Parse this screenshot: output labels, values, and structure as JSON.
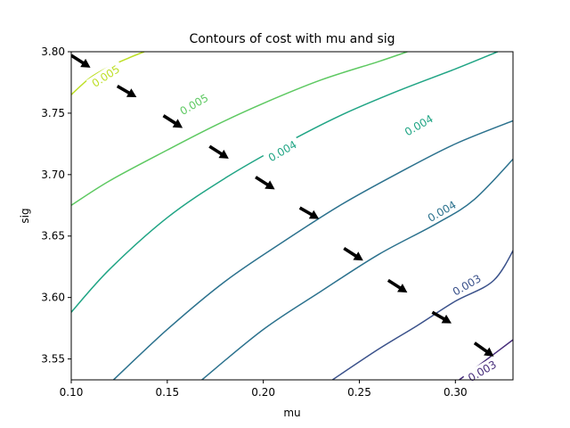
{
  "chart_data": {
    "type": "contour",
    "title": "Contours of cost with mu and sig",
    "xlabel": "mu",
    "ylabel": "sig",
    "xlim": [
      0.1,
      0.33
    ],
    "ylim": [
      3.533,
      3.8
    ],
    "xticks": [
      "0.10",
      "0.15",
      "0.20",
      "0.25",
      "0.30"
    ],
    "xtick_values": [
      0.1,
      0.15,
      0.2,
      0.25,
      0.3
    ],
    "yticks": [
      "3.55",
      "3.60",
      "3.65",
      "3.70",
      "3.75",
      "3.80"
    ],
    "ytick_values": [
      3.55,
      3.6,
      3.65,
      3.7,
      3.75,
      3.8
    ],
    "grid": false,
    "contours": [
      {
        "label": "0.005",
        "color": "#bddf26",
        "points": [
          [
            0.1,
            3.765
          ],
          [
            0.11,
            3.779
          ],
          [
            0.12,
            3.788
          ],
          [
            0.13,
            3.795
          ],
          [
            0.138,
            3.8
          ]
        ],
        "label_at": [
          0.118,
          3.78
        ],
        "label_angle": -33
      },
      {
        "label": "0.005",
        "color": "#5ec962",
        "points": [
          [
            0.1,
            3.675
          ],
          [
            0.12,
            3.695
          ],
          [
            0.15,
            3.72
          ],
          [
            0.175,
            3.74
          ],
          [
            0.2,
            3.758
          ],
          [
            0.23,
            3.777
          ],
          [
            0.26,
            3.792
          ],
          [
            0.275,
            3.8
          ]
        ],
        "label_at": [
          0.164,
          3.757
        ],
        "label_angle": -30
      },
      {
        "label": "0.004",
        "color": "#21a585",
        "points": [
          [
            0.1,
            3.588
          ],
          [
            0.12,
            3.623
          ],
          [
            0.15,
            3.665
          ],
          [
            0.18,
            3.697
          ],
          [
            0.21,
            3.724
          ],
          [
            0.24,
            3.748
          ],
          [
            0.27,
            3.768
          ],
          [
            0.3,
            3.786
          ],
          [
            0.322,
            3.8
          ]
        ],
        "label_at": [
          0.21,
          3.719
        ],
        "label_angle": -30
      },
      {
        "label": "0.004",
        "color": "#21a585",
        "points": [],
        "label_at": [
          0.281,
          3.74
        ],
        "label_angle": -30
      },
      {
        "label": "0.004",
        "color": "#2c728e",
        "points": [
          [
            0.122,
            3.533
          ],
          [
            0.15,
            3.574
          ],
          [
            0.18,
            3.613
          ],
          [
            0.21,
            3.645
          ],
          [
            0.24,
            3.675
          ],
          [
            0.27,
            3.701
          ],
          [
            0.3,
            3.725
          ],
          [
            0.332,
            3.745
          ]
        ],
        "label_at": [
          0.293,
          3.67
        ],
        "label_angle": -30
      },
      {
        "label": "0.004",
        "color": "#2c728e",
        "points": [
          [
            0.168,
            3.533
          ],
          [
            0.2,
            3.574
          ],
          [
            0.23,
            3.605
          ],
          [
            0.26,
            3.635
          ],
          [
            0.29,
            3.66
          ],
          [
            0.31,
            3.68
          ],
          [
            0.332,
            3.716
          ]
        ],
        "label_at": [],
        "label_angle": -30
      },
      {
        "label": "0.003",
        "color": "#3b528b",
        "points": [
          [
            0.236,
            3.533
          ],
          [
            0.26,
            3.558
          ],
          [
            0.28,
            3.577
          ],
          [
            0.3,
            3.597
          ],
          [
            0.32,
            3.614
          ],
          [
            0.332,
            3.644
          ]
        ],
        "label_at": [
          0.306,
          3.61
        ],
        "label_angle": -30
      },
      {
        "label": "0.003",
        "color": "#472d7b",
        "points": [
          [
            0.302,
            3.533
          ],
          [
            0.315,
            3.548
          ],
          [
            0.332,
            3.568
          ]
        ],
        "label_at": [
          0.314,
          3.54
        ],
        "label_angle": -30
      }
    ],
    "arrows": [
      {
        "from": [
          0.1,
          3.797
        ],
        "to": [
          0.11,
          3.787
        ]
      },
      {
        "from": [
          0.124,
          3.772
        ],
        "to": [
          0.134,
          3.763
        ]
      },
      {
        "from": [
          0.148,
          3.748
        ],
        "to": [
          0.158,
          3.738
        ]
      },
      {
        "from": [
          0.172,
          3.723
        ],
        "to": [
          0.182,
          3.713
        ]
      },
      {
        "from": [
          0.196,
          3.698
        ],
        "to": [
          0.206,
          3.688
        ]
      },
      {
        "from": [
          0.219,
          3.673
        ],
        "to": [
          0.229,
          3.664
        ]
      },
      {
        "from": [
          0.242,
          3.64
        ],
        "to": [
          0.252,
          3.63
        ]
      },
      {
        "from": [
          0.265,
          3.614
        ],
        "to": [
          0.275,
          3.604
        ]
      },
      {
        "from": [
          0.288,
          3.588
        ],
        "to": [
          0.298,
          3.579
        ]
      },
      {
        "from": [
          0.31,
          3.563
        ],
        "to": [
          0.32,
          3.552
        ]
      }
    ]
  }
}
